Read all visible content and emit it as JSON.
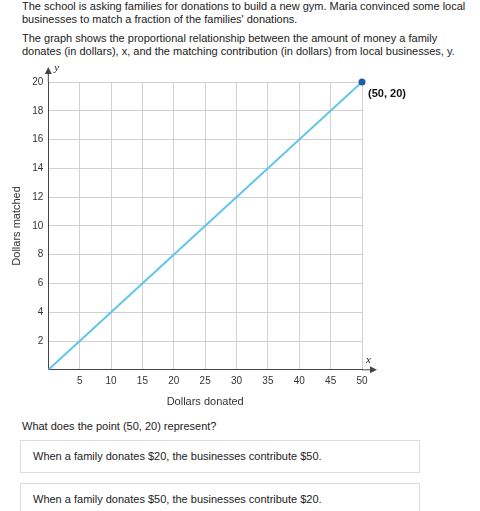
{
  "header": {
    "lines": [
      "The school is asking families for donations to build a new gym. Maria convinced some local",
      "businesses to match a fraction of the families' donations."
    ]
  },
  "description": "The graph shows the proportional relationship between the amount of money a family donates (in dollars), x, and the matching contribution (in dollars) from local businesses, y.",
  "chart_data": {
    "type": "line",
    "x_label": "Dollars donated",
    "y_label": "Dollars matched",
    "x_symbol": "x",
    "y_symbol": "y",
    "x": [
      0,
      50
    ],
    "values": [
      0,
      20
    ],
    "color": "#5ec4ee",
    "xlim": [
      0,
      50
    ],
    "xticks": [
      5,
      10,
      15,
      20,
      25,
      30,
      35,
      40,
      45,
      50
    ],
    "ylim": [
      0,
      20
    ],
    "yticks": [
      2,
      4,
      6,
      8,
      10,
      12,
      14,
      16,
      18,
      20
    ],
    "grid": true,
    "annotations": [
      {
        "text": "(50, 20)",
        "x": 50,
        "y": 20
      }
    ]
  },
  "question": "What does the point (50, 20) represent?",
  "options": [
    "When a family donates $20, the businesses contribute $50.",
    "When a family donates $50, the businesses contribute $20."
  ]
}
